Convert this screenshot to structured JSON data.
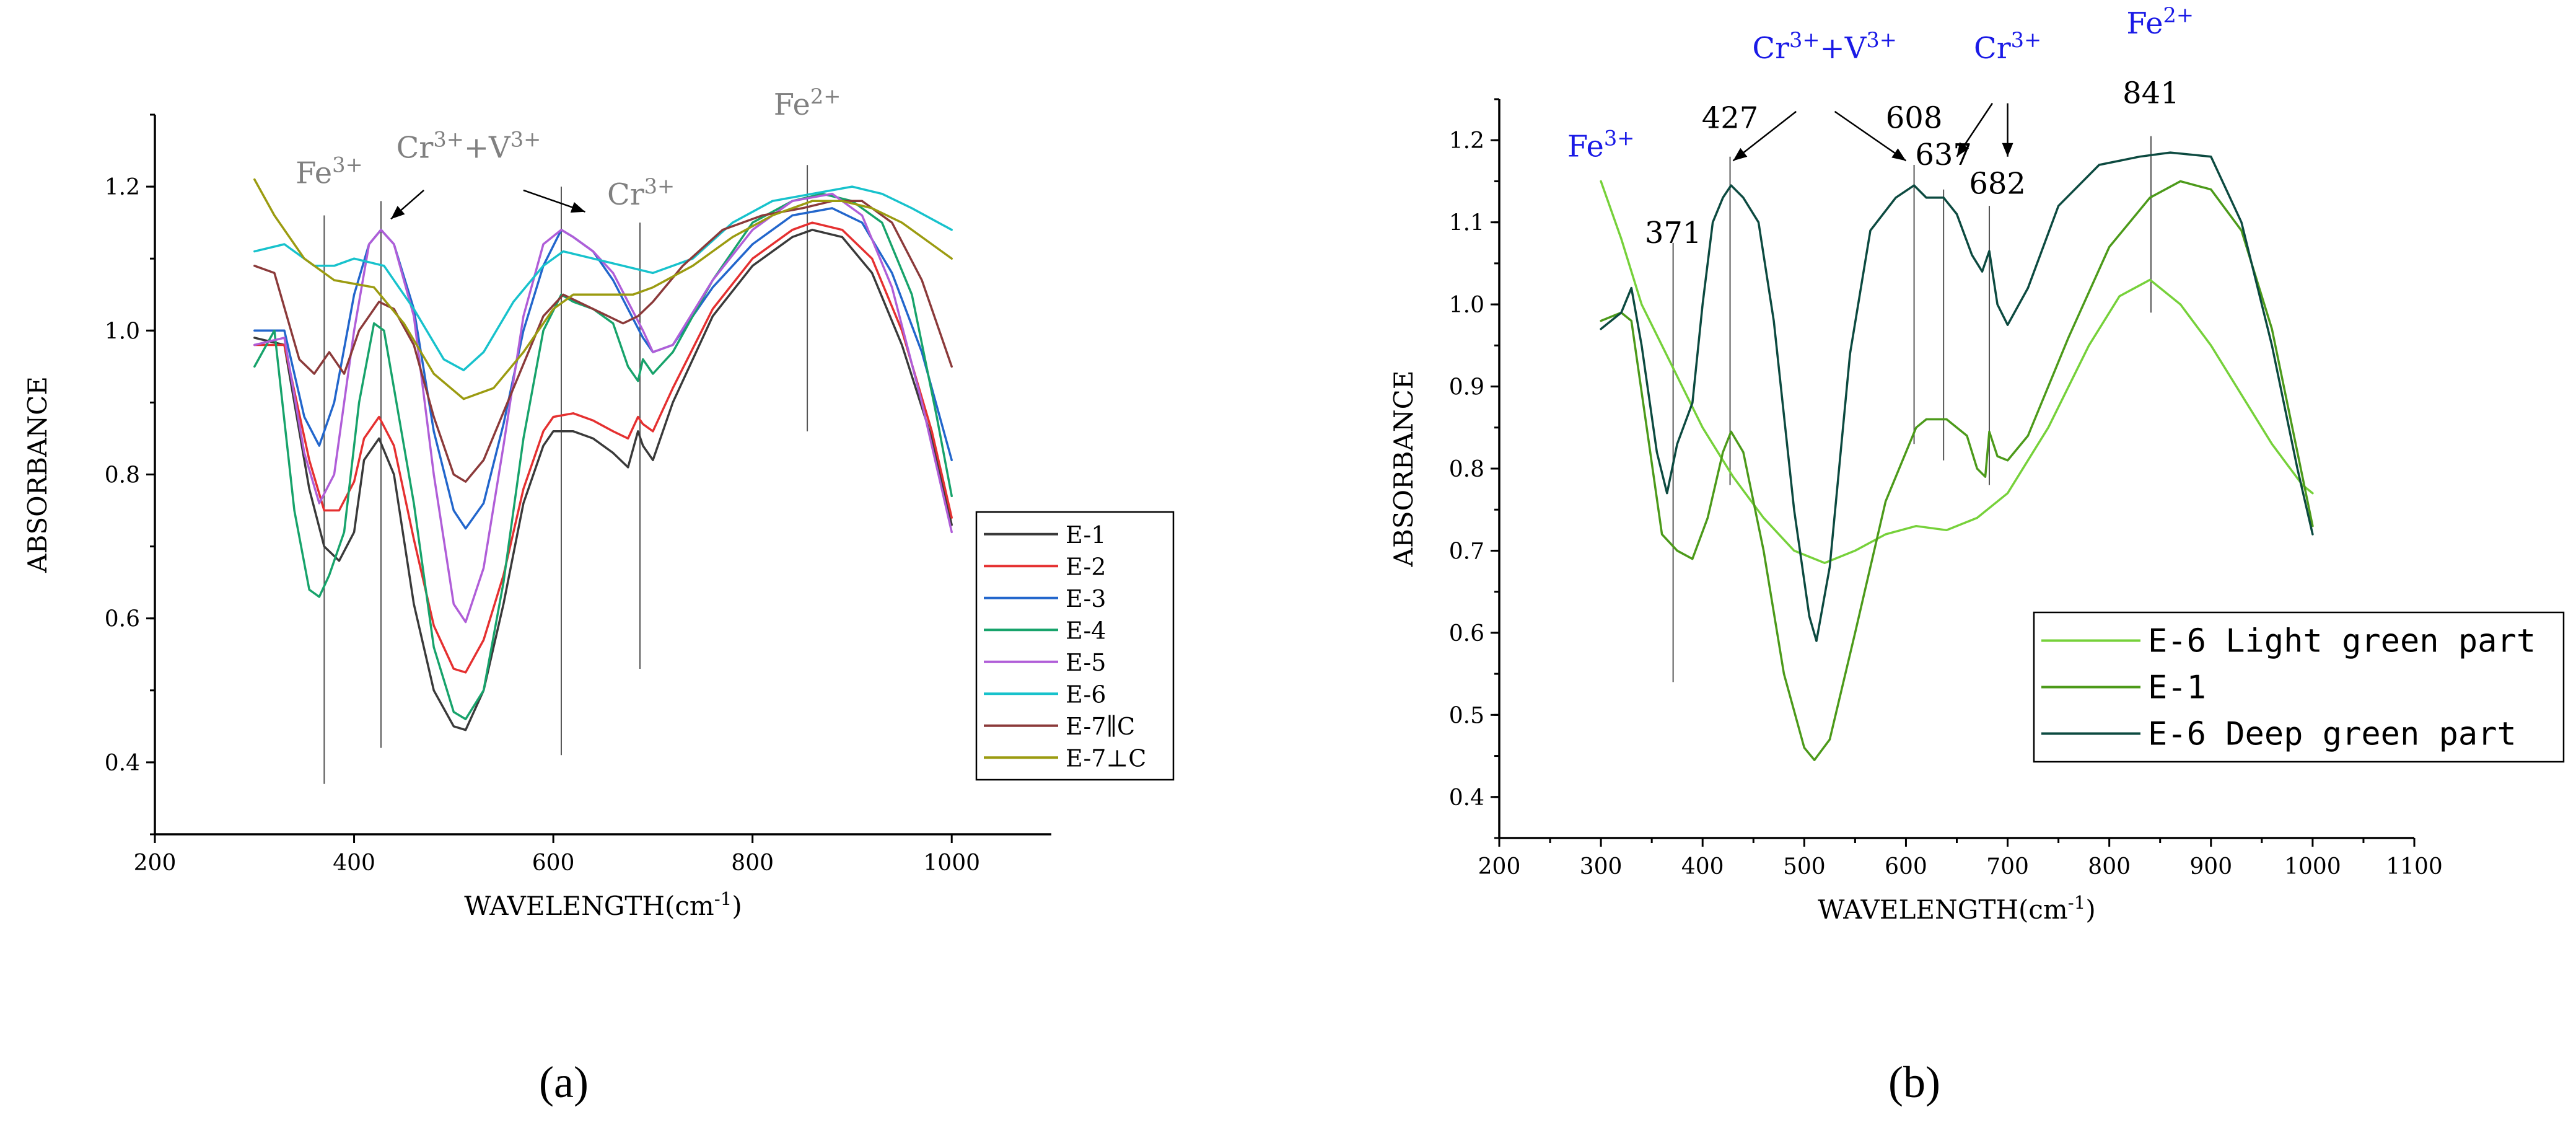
{
  "chart_data": [
    {
      "panel_label": "(a)",
      "type": "line",
      "xlabel": "WAVELENGTH(cm",
      "xlabel_sup": "-1",
      "xlabel_suffix": ")",
      "ylabel": "ABSORBANCE",
      "xlim": [
        200,
        1100
      ],
      "ylim": [
        0.3,
        1.3
      ],
      "xticks": [
        200,
        400,
        600,
        800,
        1000
      ],
      "yticks": [
        0.4,
        0.6,
        0.8,
        1.0,
        1.2
      ],
      "ytick_labels": [
        "0.4",
        "0.6",
        "0.8",
        "1.0",
        "1.2"
      ],
      "colors": {
        "annotation": "#808080",
        "guide": "#555555"
      },
      "annotations": [
        {
          "text": "Fe",
          "sup": "3+",
          "x": 375,
          "y": 1.205
        },
        {
          "text": "Cr",
          "sup": "3+",
          "text2": "+V",
          "sup2": "3+",
          "x": 515,
          "y": 1.24
        },
        {
          "text": "Cr",
          "sup": "3+",
          "x": 688,
          "y": 1.175
        },
        {
          "text": "Fe",
          "sup": "2+",
          "x": 855,
          "y": 1.3
        }
      ],
      "guides": [
        {
          "x": 370,
          "y1": 0.37,
          "y2": 1.16
        },
        {
          "x": 427,
          "y1": 0.42,
          "y2": 1.18
        },
        {
          "x": 608,
          "y1": 0.41,
          "y2": 1.2
        },
        {
          "x": 687,
          "y1": 0.53,
          "y2": 1.15
        },
        {
          "x": 855,
          "y1": 0.86,
          "y2": 1.23
        }
      ],
      "arrows": [
        {
          "x1": 470,
          "y1": 1.195,
          "x2": 437,
          "y2": 1.155
        },
        {
          "x1": 570,
          "y1": 1.195,
          "x2": 632,
          "y2": 1.165
        }
      ],
      "series": [
        {
          "name": "E-1",
          "color": "#3a3a3a",
          "x": [
            300,
            330,
            355,
            370,
            385,
            400,
            410,
            425,
            440,
            460,
            480,
            500,
            512,
            530,
            550,
            570,
            590,
            600,
            620,
            640,
            660,
            675,
            685,
            690,
            700,
            720,
            760,
            800,
            840,
            860,
            890,
            920,
            950,
            980,
            1000
          ],
          "y": [
            0.99,
            0.98,
            0.78,
            0.7,
            0.68,
            0.72,
            0.82,
            0.85,
            0.8,
            0.62,
            0.5,
            0.45,
            0.445,
            0.5,
            0.62,
            0.76,
            0.84,
            0.86,
            0.86,
            0.85,
            0.83,
            0.81,
            0.86,
            0.84,
            0.82,
            0.9,
            1.02,
            1.09,
            1.13,
            1.14,
            1.13,
            1.08,
            0.98,
            0.85,
            0.73
          ]
        },
        {
          "name": "E-2",
          "color": "#e53030",
          "x": [
            300,
            330,
            355,
            370,
            385,
            400,
            410,
            425,
            440,
            460,
            480,
            500,
            512,
            530,
            550,
            570,
            590,
            600,
            620,
            640,
            660,
            675,
            685,
            690,
            700,
            720,
            760,
            800,
            840,
            860,
            890,
            920,
            950,
            980,
            1000
          ],
          "y": [
            0.98,
            0.98,
            0.82,
            0.75,
            0.75,
            0.79,
            0.85,
            0.88,
            0.84,
            0.71,
            0.59,
            0.53,
            0.525,
            0.57,
            0.66,
            0.78,
            0.86,
            0.88,
            0.885,
            0.875,
            0.86,
            0.85,
            0.88,
            0.87,
            0.86,
            0.92,
            1.03,
            1.1,
            1.14,
            1.15,
            1.14,
            1.1,
            1.0,
            0.86,
            0.74
          ]
        },
        {
          "name": "E-3",
          "color": "#2266cc",
          "x": [
            300,
            330,
            350,
            365,
            380,
            400,
            415,
            427,
            440,
            460,
            480,
            500,
            512,
            530,
            550,
            570,
            590,
            608,
            620,
            640,
            660,
            675,
            690,
            700,
            720,
            760,
            800,
            840,
            880,
            910,
            940,
            970,
            1000
          ],
          "y": [
            1.0,
            1.0,
            0.88,
            0.84,
            0.9,
            1.05,
            1.12,
            1.14,
            1.12,
            1.03,
            0.86,
            0.75,
            0.725,
            0.76,
            0.87,
            1.0,
            1.09,
            1.14,
            1.13,
            1.11,
            1.07,
            1.03,
            0.99,
            0.97,
            0.98,
            1.06,
            1.12,
            1.16,
            1.17,
            1.15,
            1.08,
            0.97,
            0.82
          ]
        },
        {
          "name": "E-4",
          "color": "#17a36b",
          "x": [
            300,
            320,
            340,
            355,
            365,
            375,
            390,
            405,
            420,
            430,
            440,
            460,
            480,
            500,
            512,
            530,
            550,
            570,
            590,
            608,
            620,
            640,
            660,
            675,
            685,
            690,
            700,
            720,
            760,
            800,
            840,
            870,
            900,
            930,
            960,
            985,
            1000
          ],
          "y": [
            0.95,
            1.0,
            0.75,
            0.64,
            0.63,
            0.66,
            0.72,
            0.9,
            1.01,
            1.0,
            0.92,
            0.76,
            0.56,
            0.47,
            0.46,
            0.5,
            0.65,
            0.85,
            1.0,
            1.05,
            1.04,
            1.03,
            1.01,
            0.95,
            0.93,
            0.96,
            0.94,
            0.97,
            1.07,
            1.15,
            1.18,
            1.19,
            1.18,
            1.15,
            1.05,
            0.88,
            0.77
          ]
        },
        {
          "name": "E-5",
          "color": "#b05ed8",
          "x": [
            300,
            330,
            350,
            365,
            380,
            400,
            415,
            427,
            440,
            460,
            480,
            500,
            512,
            530,
            550,
            570,
            590,
            608,
            620,
            640,
            660,
            675,
            690,
            700,
            720,
            760,
            800,
            840,
            880,
            910,
            940,
            970,
            1000
          ],
          "y": [
            0.98,
            0.99,
            0.83,
            0.76,
            0.8,
            1.0,
            1.12,
            1.14,
            1.12,
            1.02,
            0.8,
            0.62,
            0.595,
            0.67,
            0.84,
            1.02,
            1.12,
            1.14,
            1.13,
            1.11,
            1.08,
            1.04,
            1.0,
            0.97,
            0.98,
            1.07,
            1.14,
            1.18,
            1.19,
            1.16,
            1.06,
            0.9,
            0.72
          ]
        },
        {
          "name": "E-6",
          "color": "#17c2cc",
          "x": [
            300,
            330,
            360,
            380,
            400,
            430,
            460,
            490,
            510,
            530,
            560,
            590,
            610,
            640,
            670,
            700,
            740,
            780,
            820,
            860,
            900,
            930,
            960,
            1000
          ],
          "y": [
            1.11,
            1.12,
            1.09,
            1.09,
            1.1,
            1.09,
            1.03,
            0.96,
            0.945,
            0.97,
            1.04,
            1.09,
            1.11,
            1.1,
            1.09,
            1.08,
            1.1,
            1.15,
            1.18,
            1.19,
            1.2,
            1.19,
            1.17,
            1.14
          ]
        },
        {
          "name": "E-7∥C",
          "color": "#8b3a3a",
          "x": [
            300,
            320,
            345,
            360,
            375,
            390,
            405,
            425,
            440,
            460,
            480,
            500,
            512,
            530,
            560,
            590,
            610,
            640,
            670,
            685,
            700,
            730,
            770,
            810,
            850,
            880,
            910,
            940,
            970,
            1000
          ],
          "y": [
            1.09,
            1.08,
            0.96,
            0.94,
            0.97,
            0.94,
            1.0,
            1.04,
            1.03,
            0.98,
            0.88,
            0.8,
            0.79,
            0.82,
            0.92,
            1.02,
            1.05,
            1.03,
            1.01,
            1.02,
            1.04,
            1.09,
            1.14,
            1.16,
            1.17,
            1.18,
            1.18,
            1.15,
            1.07,
            0.95
          ]
        },
        {
          "name": "E-7⊥C",
          "color": "#9b9b10",
          "x": [
            300,
            320,
            350,
            380,
            420,
            450,
            480,
            510,
            540,
            570,
            600,
            620,
            650,
            680,
            700,
            740,
            780,
            820,
            860,
            890,
            920,
            950,
            980,
            1000
          ],
          "y": [
            1.21,
            1.16,
            1.1,
            1.07,
            1.06,
            1.01,
            0.94,
            0.905,
            0.92,
            0.97,
            1.03,
            1.05,
            1.05,
            1.05,
            1.06,
            1.09,
            1.13,
            1.16,
            1.18,
            1.18,
            1.17,
            1.15,
            1.12,
            1.1
          ]
        }
      ],
      "legend_position": "bottom-right"
    },
    {
      "panel_label": "(b)",
      "type": "line",
      "xlabel": "WAVELENGTH(cm",
      "xlabel_sup": "-1",
      "xlabel_suffix": ")",
      "ylabel": "ABSORBANCE",
      "xlim": [
        200,
        1100
      ],
      "ylim": [
        0.35,
        1.25
      ],
      "xticks": [
        200,
        300,
        400,
        500,
        600,
        700,
        800,
        900,
        1000,
        1100
      ],
      "yticks": [
        0.4,
        0.5,
        0.6,
        0.7,
        0.8,
        0.9,
        1.0,
        1.1,
        1.2
      ],
      "ytick_labels": [
        "0.4",
        "0.5",
        "0.6",
        "0.7",
        "0.8",
        "0.9",
        "1.0",
        "1.1",
        "1.2"
      ],
      "colors": {
        "ion_label": "#1a1ae6",
        "number_label": "#000000"
      },
      "annotations": [
        {
          "text": "Fe",
          "sup": "3+",
          "x": 300,
          "y": 1.18,
          "color": "#1a1ae6"
        },
        {
          "text": "Cr",
          "sup": "3+",
          "text2": "+V",
          "sup2": "3+",
          "x": 520,
          "y": 1.3,
          "color": "#1a1ae6"
        },
        {
          "text": "Cr",
          "sup": "3+",
          "x": 700,
          "y": 1.3,
          "color": "#1a1ae6"
        },
        {
          "text": "Fe",
          "sup": "2+",
          "x": 850,
          "y": 1.33,
          "color": "#1a1ae6"
        },
        {
          "text": "427",
          "x": 427,
          "y": 1.215
        },
        {
          "text": "608",
          "x": 608,
          "y": 1.215
        },
        {
          "text": "637",
          "x": 637,
          "y": 1.17
        },
        {
          "text": "682",
          "x": 690,
          "y": 1.135
        },
        {
          "text": "841",
          "x": 841,
          "y": 1.245
        },
        {
          "text": "371",
          "x": 371,
          "y": 1.075
        }
      ],
      "guides": [
        {
          "x": 371,
          "y1": 0.54,
          "y2": 1.075
        },
        {
          "x": 427,
          "y1": 0.78,
          "y2": 1.18
        },
        {
          "x": 608,
          "y1": 0.83,
          "y2": 1.17
        },
        {
          "x": 637,
          "y1": 0.81,
          "y2": 1.14
        },
        {
          "x": 682,
          "y1": 0.78,
          "y2": 1.12
        },
        {
          "x": 841,
          "y1": 0.99,
          "y2": 1.205
        }
      ],
      "arrows": [
        {
          "x1": 492,
          "y1": 1.235,
          "x2": 430,
          "y2": 1.175
        },
        {
          "x1": 530,
          "y1": 1.235,
          "x2": 600,
          "y2": 1.175
        },
        {
          "x1": 685,
          "y1": 1.245,
          "x2": 650,
          "y2": 1.18
        },
        {
          "x1": 700,
          "y1": 1.245,
          "x2": 700,
          "y2": 1.18
        }
      ],
      "series": [
        {
          "name": "E-6 Light green part",
          "color": "#76d13a",
          "x": [
            300,
            320,
            340,
            360,
            380,
            400,
            430,
            460,
            490,
            520,
            550,
            580,
            610,
            640,
            670,
            700,
            740,
            780,
            810,
            840,
            870,
            900,
            930,
            960,
            990,
            1000
          ],
          "y": [
            1.15,
            1.08,
            1.0,
            0.95,
            0.9,
            0.85,
            0.79,
            0.74,
            0.7,
            0.685,
            0.7,
            0.72,
            0.73,
            0.725,
            0.74,
            0.77,
            0.85,
            0.95,
            1.01,
            1.03,
            1.0,
            0.95,
            0.89,
            0.83,
            0.78,
            0.77
          ]
        },
        {
          "name": "E-1",
          "color": "#4c9a1a",
          "x": [
            300,
            320,
            330,
            345,
            360,
            375,
            390,
            405,
            420,
            428,
            440,
            460,
            480,
            500,
            510,
            525,
            550,
            580,
            610,
            620,
            640,
            660,
            670,
            678,
            682,
            690,
            700,
            720,
            760,
            800,
            840,
            870,
            900,
            930,
            960,
            985,
            1000
          ],
          "y": [
            0.98,
            0.99,
            0.98,
            0.85,
            0.72,
            0.7,
            0.69,
            0.74,
            0.82,
            0.845,
            0.82,
            0.7,
            0.55,
            0.46,
            0.445,
            0.47,
            0.6,
            0.76,
            0.85,
            0.86,
            0.86,
            0.84,
            0.8,
            0.79,
            0.845,
            0.815,
            0.81,
            0.84,
            0.96,
            1.07,
            1.13,
            1.15,
            1.14,
            1.09,
            0.97,
            0.82,
            0.73
          ]
        },
        {
          "name": "E-6 Deep green part",
          "color": "#0c4a40",
          "x": [
            300,
            320,
            330,
            340,
            355,
            365,
            375,
            390,
            400,
            410,
            420,
            428,
            440,
            455,
            470,
            490,
            505,
            512,
            525,
            545,
            565,
            590,
            608,
            620,
            637,
            650,
            665,
            675,
            682,
            690,
            700,
            720,
            750,
            790,
            830,
            860,
            900,
            930,
            960,
            985,
            1000
          ],
          "y": [
            0.97,
            0.99,
            1.02,
            0.95,
            0.82,
            0.77,
            0.83,
            0.88,
            1.0,
            1.1,
            1.13,
            1.145,
            1.13,
            1.1,
            0.98,
            0.75,
            0.62,
            0.59,
            0.68,
            0.94,
            1.09,
            1.13,
            1.145,
            1.13,
            1.13,
            1.11,
            1.06,
            1.04,
            1.065,
            1.0,
            0.975,
            1.02,
            1.12,
            1.17,
            1.18,
            1.185,
            1.18,
            1.1,
            0.95,
            0.8,
            0.72
          ]
        }
      ],
      "legend_position": "bottom-right"
    }
  ]
}
